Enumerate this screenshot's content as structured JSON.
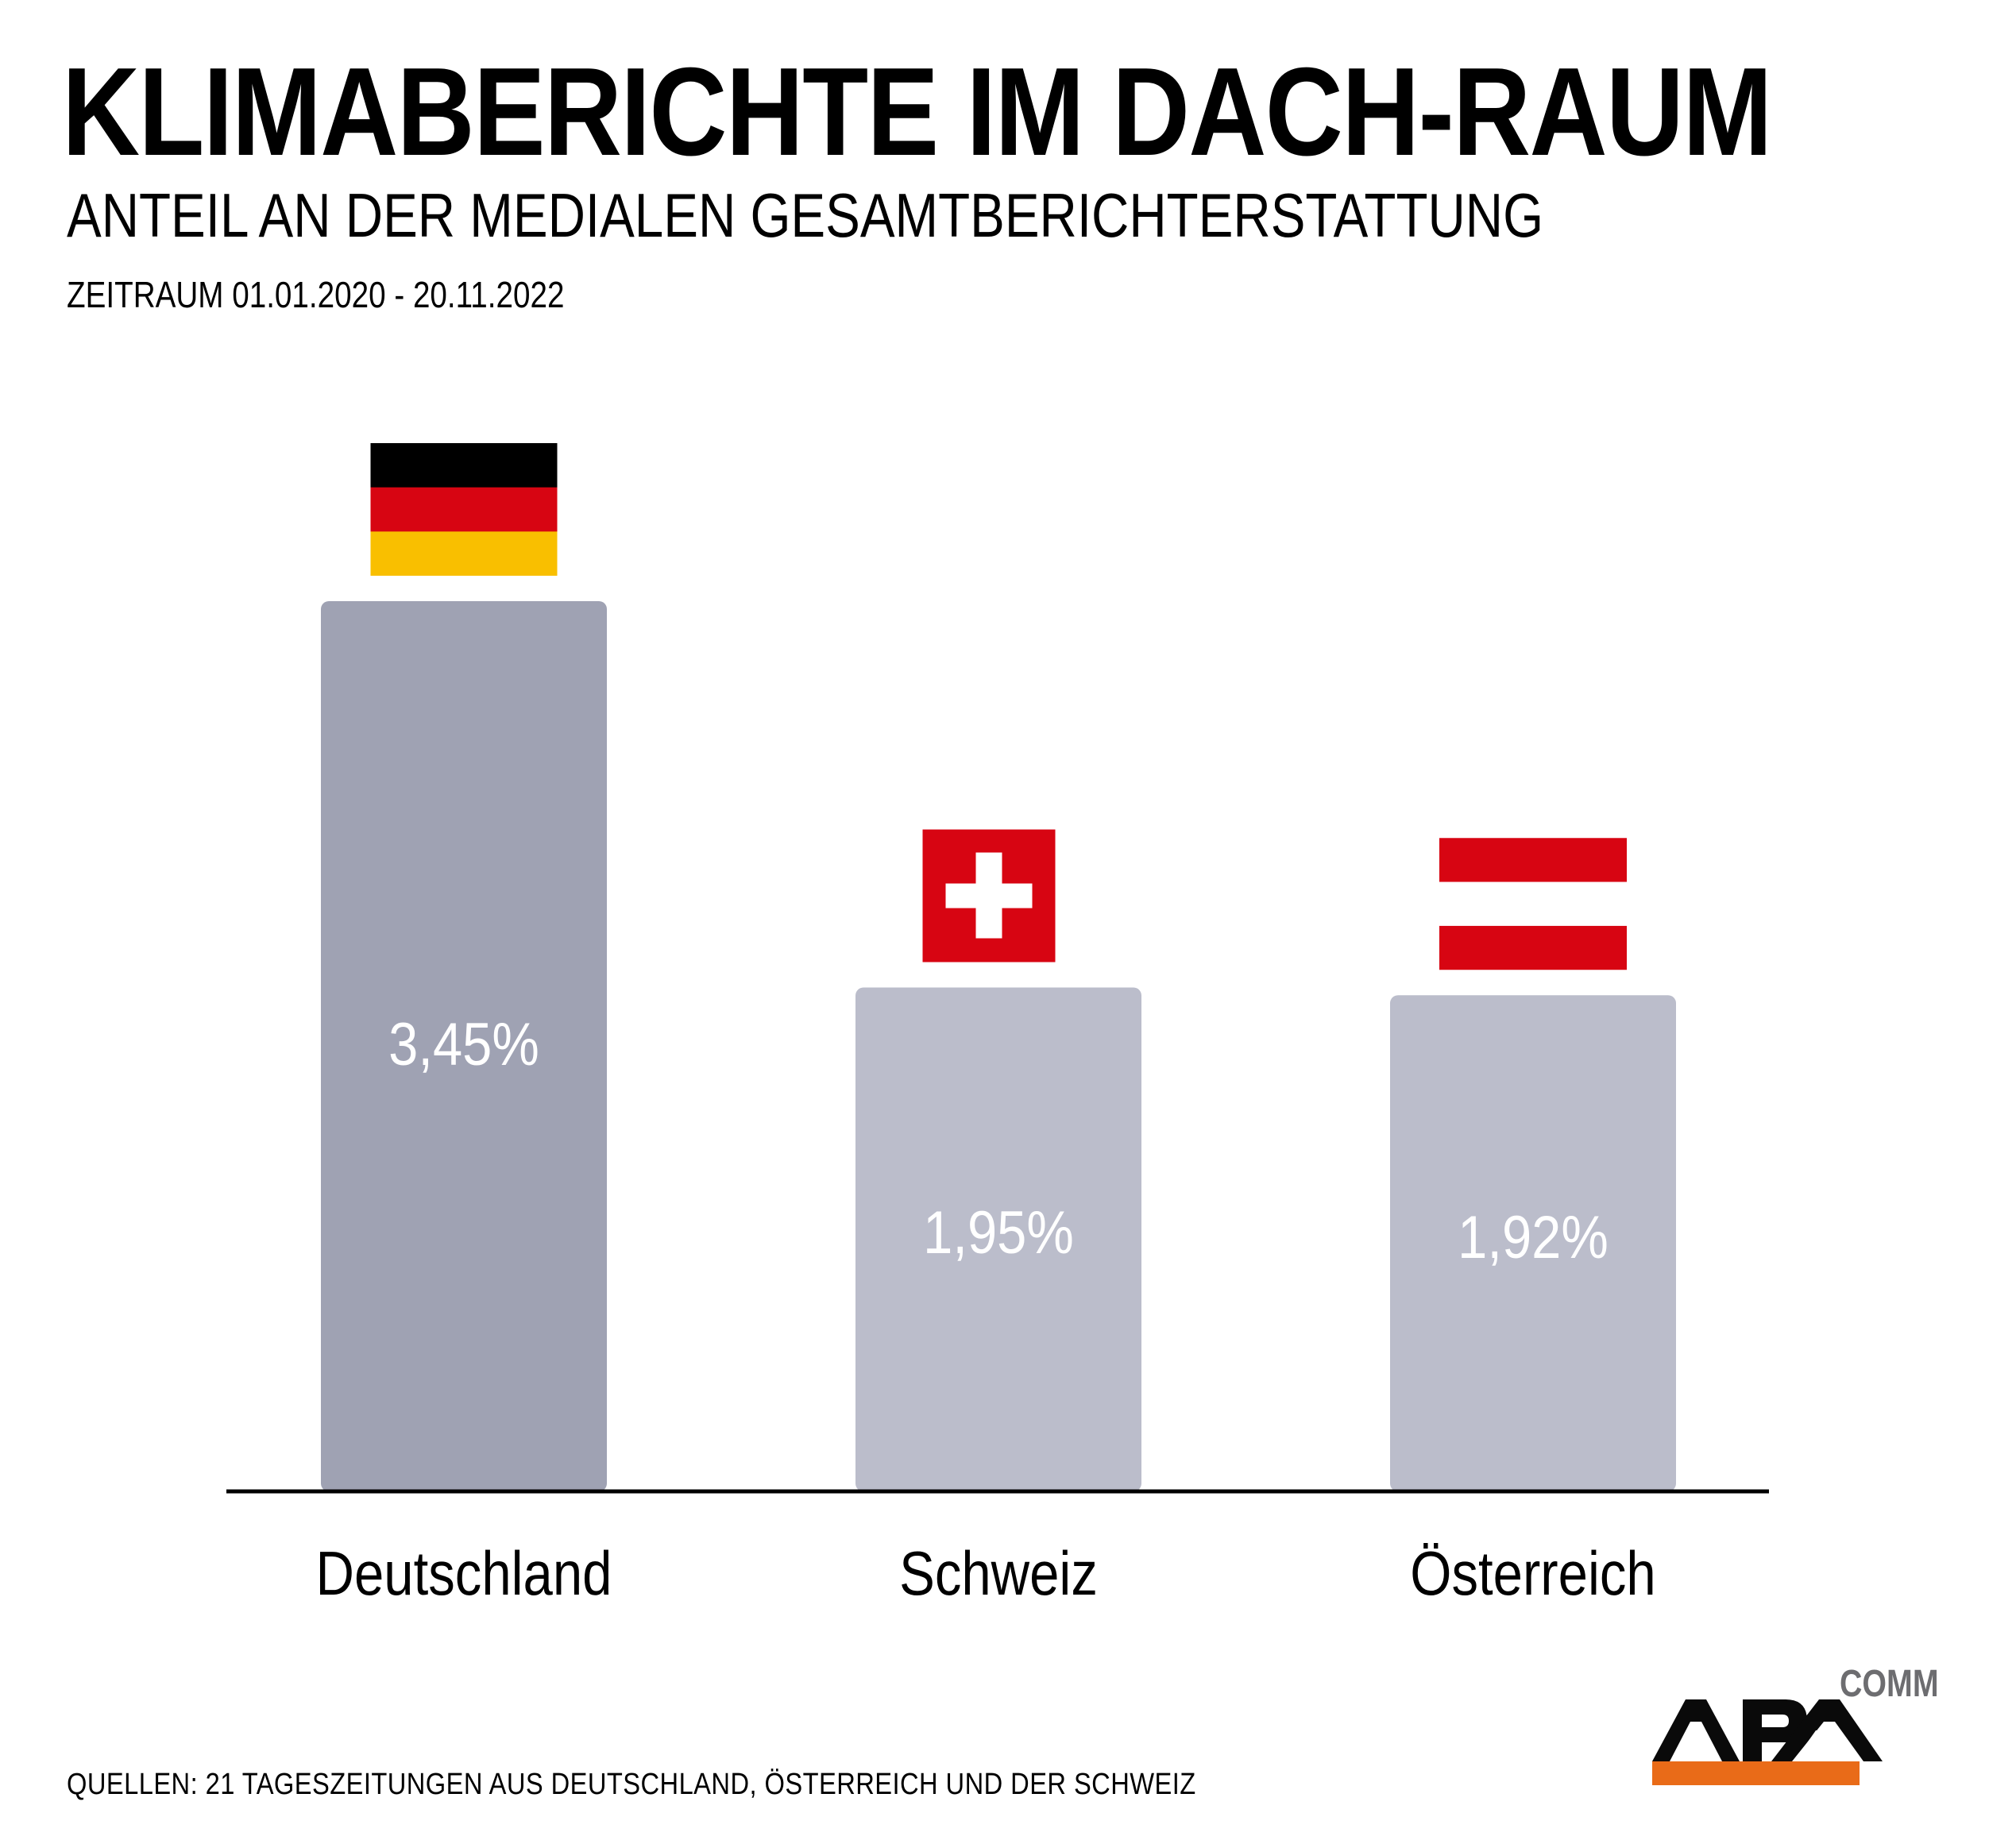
{
  "header": {
    "title": "KLIMABERICHTE IM DACH-RAUM",
    "subtitle": "ANTEIL AN DER MEDIALEN GESAMTBERICHTERSTATTUNG",
    "period": "ZEITRAUM 01.01.2020 - 20.11.2022"
  },
  "chart_data": {
    "type": "bar",
    "title": "KLIMABERICHTE IM DACH-RAUM",
    "subtitle": "ANTEIL AN DER MEDIALEN GESAMTBERICHTERSTATTUNG",
    "xlabel": "",
    "ylabel": "",
    "unit": "%",
    "categories": [
      "Deutschland",
      "Schweiz",
      "Österreich"
    ],
    "values": [
      3.45,
      1.95,
      1.92
    ],
    "value_labels": [
      "3,45%",
      "1,95%",
      "1,92%"
    ],
    "flags": [
      "germany-flag",
      "switzerland-flag",
      "austria-flag"
    ],
    "colors": [
      "#9fa2b3",
      "#bbbdcb",
      "#bbbdcb"
    ],
    "grid": false,
    "legend": "none"
  },
  "colors": {
    "flag_black": "#000000",
    "flag_red": "#d70512",
    "flag_gold": "#f9bf00",
    "white": "#ffffff",
    "axis": "#000000",
    "logo_orange": "#e96b18",
    "logo_black": "#0a0a0a",
    "logo_gray": "#6d6d70"
  },
  "footer": {
    "source": "QUELLEN: 21 TAGESZEITUNGEN AUS DEUTSCHLAND, ÖSTERREICH UND DER SCHWEIZ"
  },
  "logo": {
    "name": "APA",
    "suffix": "COMM"
  }
}
